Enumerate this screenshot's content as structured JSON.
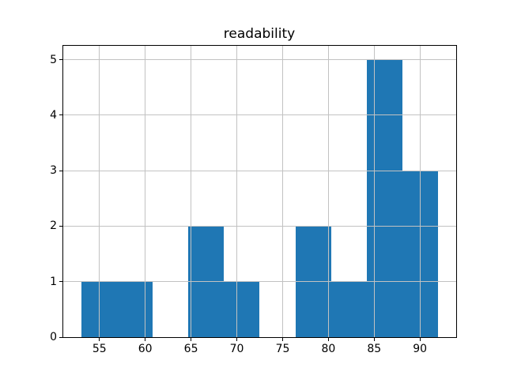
{
  "chart_data": {
    "type": "bar",
    "subtype": "histogram",
    "title": "readability",
    "xlabel": "",
    "ylabel": "",
    "bin_edges": [
      53.0,
      56.9,
      60.8,
      64.7,
      68.6,
      72.5,
      76.4,
      80.3,
      84.2,
      88.1,
      92.0
    ],
    "counts": [
      1,
      1,
      0,
      2,
      1,
      0,
      2,
      1,
      5,
      3
    ],
    "xticks": [
      55,
      60,
      65,
      70,
      75,
      80,
      85,
      90
    ],
    "yticks": [
      0,
      1,
      2,
      3,
      4,
      5
    ],
    "xlim": [
      51.05,
      93.95
    ],
    "ylim": [
      0,
      5.25
    ],
    "grid": true,
    "legend": null,
    "bar_color": "#1f77b4",
    "grid_color": "#c2c2c2",
    "axis_color": "#000000",
    "background_color": "#ffffff"
  }
}
